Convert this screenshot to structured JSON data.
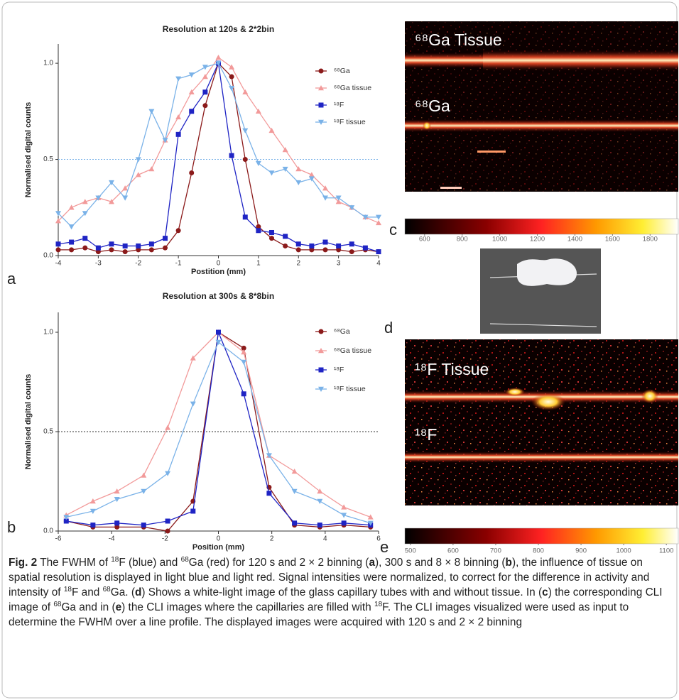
{
  "chart_data": [
    {
      "type": "line",
      "panel_label": "a",
      "title": "Resolution at 120s & 2*2bin",
      "xlabel": "Postition (mm)",
      "ylabel": "Normalised digital counts",
      "x": [
        -4,
        -3.67,
        -3.33,
        -3,
        -2.67,
        -2.33,
        -2,
        -1.67,
        -1.33,
        -1,
        -0.67,
        -0.33,
        0,
        0.33,
        0.67,
        1,
        1.33,
        1.67,
        2,
        2.33,
        2.67,
        3,
        3.33,
        3.67,
        4
      ],
      "xlim": [
        -4,
        4
      ],
      "xticks": [
        -4,
        -3,
        -2,
        -1,
        0,
        1,
        2,
        3,
        4
      ],
      "ylim": [
        0,
        1.1
      ],
      "yticks": [
        {
          "value": 0,
          "label": "0.0"
        },
        {
          "value": 0.5,
          "label": "0.5"
        },
        {
          "value": 1,
          "label": "1.0"
        }
      ],
      "reference_line": {
        "value": 0.5,
        "color": "#7ab2e8"
      },
      "legend": "upper right",
      "series": [
        {
          "name": "⁶⁸Ga",
          "color": "#8b1a1a",
          "marker": "circle",
          "values": [
            0.03,
            0.03,
            0.04,
            0.02,
            0.03,
            0.02,
            0.03,
            0.03,
            0.04,
            0.13,
            0.43,
            0.78,
            1.0,
            0.93,
            0.5,
            0.15,
            0.09,
            0.05,
            0.03,
            0.03,
            0.03,
            0.03,
            0.02,
            0.03,
            0.02
          ]
        },
        {
          "name": "⁶⁸Ga tissue",
          "color": "#f29a9a",
          "marker": "triangle-up",
          "values": [
            0.18,
            0.25,
            0.28,
            0.3,
            0.28,
            0.35,
            0.42,
            0.45,
            0.6,
            0.72,
            0.85,
            0.93,
            1.03,
            0.98,
            0.85,
            0.75,
            0.65,
            0.55,
            0.45,
            0.42,
            0.35,
            0.28,
            0.25,
            0.2,
            0.17
          ]
        },
        {
          "name": "¹⁸F",
          "color": "#1f24c4",
          "marker": "square",
          "values": [
            0.06,
            0.07,
            0.09,
            0.04,
            0.06,
            0.05,
            0.05,
            0.06,
            0.09,
            0.63,
            0.75,
            0.85,
            1.0,
            0.52,
            0.2,
            0.13,
            0.12,
            0.1,
            0.06,
            0.05,
            0.07,
            0.05,
            0.06,
            0.04,
            0.02
          ]
        },
        {
          "name": "¹⁸F tissue",
          "color": "#7ab2e8",
          "marker": "triangle-down",
          "values": [
            0.22,
            0.15,
            0.22,
            0.3,
            0.38,
            0.3,
            0.5,
            0.75,
            0.6,
            0.92,
            0.94,
            0.98,
            1.0,
            0.87,
            0.65,
            0.48,
            0.43,
            0.45,
            0.38,
            0.4,
            0.3,
            0.3,
            0.25,
            0.2,
            0.2
          ]
        }
      ]
    },
    {
      "type": "line",
      "panel_label": "b",
      "title": "Resolution at 300s & 8*8bin",
      "xlabel": "Position (mm)",
      "ylabel": "Normalised digital counts",
      "x": [
        -5.7,
        -4.7,
        -3.8,
        -2.8,
        -1.9,
        -0.95,
        0,
        0.95,
        1.9,
        2.85,
        3.8,
        4.7,
        5.7
      ],
      "xlim": [
        -6,
        6
      ],
      "xticks": [
        -6,
        -4,
        -2,
        0,
        2,
        4,
        6
      ],
      "ylim": [
        0,
        1.1
      ],
      "yticks": [
        {
          "value": 0,
          "label": "0.0"
        },
        {
          "value": 0.5,
          "label": "0.5"
        },
        {
          "value": 1,
          "label": "1.0"
        }
      ],
      "reference_line": {
        "value": 0.5,
        "color": "#333333"
      },
      "legend": "upper right",
      "series": [
        {
          "name": "⁶⁸Ga",
          "color": "#8b1a1a",
          "marker": "circle",
          "values": [
            0.05,
            0.02,
            0.02,
            0.02,
            0.0,
            0.15,
            1.0,
            0.92,
            0.22,
            0.03,
            0.02,
            0.03,
            0.02
          ]
        },
        {
          "name": "⁶⁸Ga tissue",
          "color": "#f29a9a",
          "marker": "triangle-up",
          "values": [
            0.08,
            0.15,
            0.2,
            0.28,
            0.52,
            0.87,
            1.0,
            0.9,
            0.38,
            0.3,
            0.2,
            0.12,
            0.07
          ]
        },
        {
          "name": "¹⁸F",
          "color": "#1f24c4",
          "marker": "square",
          "values": [
            0.05,
            0.03,
            0.04,
            0.03,
            0.05,
            0.1,
            1.0,
            0.69,
            0.19,
            0.04,
            0.03,
            0.04,
            0.03
          ]
        },
        {
          "name": "¹⁸F tissue",
          "color": "#7ab2e8",
          "marker": "triangle-down",
          "values": [
            0.07,
            0.1,
            0.16,
            0.2,
            0.29,
            0.64,
            0.95,
            0.85,
            0.38,
            0.2,
            0.15,
            0.08,
            0.04
          ]
        }
      ]
    }
  ],
  "images": [
    {
      "panel_label": "c",
      "labels": [
        "⁶⁸Ga Tissue",
        "⁶⁸Ga"
      ],
      "colorbar": {
        "lim": [
          495,
          1950
        ],
        "ticks": [
          600,
          800,
          1000,
          1200,
          1400,
          1600,
          1800
        ]
      }
    },
    {
      "panel_label": "d"
    },
    {
      "panel_label": "e",
      "labels": [
        "¹⁸F Tissue",
        "¹⁸F"
      ],
      "colorbar": {
        "lim": [
          487,
          1128
        ],
        "ticks": [
          500,
          600,
          700,
          800,
          900,
          1000,
          1100
        ]
      }
    }
  ],
  "caption": [
    {
      "text": "Fig. 2",
      "style": "bold"
    },
    " The FWHM of ",
    {
      "text": "18",
      "style": "sup"
    },
    "F (blue) and ",
    {
      "text": "68",
      "style": "sup"
    },
    "Ga (red) for 120 s and 2 × 2 binning (",
    {
      "text": "a",
      "style": "bold"
    },
    "), 300 s and 8 × 8 binning (",
    {
      "text": "b",
      "style": "bold"
    },
    "), the influence of tissue on spatial resolution is displayed in light blue and light red. Signal intensities were normalized, to correct for the difference in activity and intensity of ",
    {
      "text": "18",
      "style": "sup"
    },
    "F and ",
    {
      "text": "68",
      "style": "sup"
    },
    "Ga. (",
    {
      "text": "d",
      "style": "bold"
    },
    ") Shows a white-light image of the glass capillary tubes with and without tissue. In (",
    {
      "text": "c",
      "style": "bold"
    },
    ") the corresponding CLI image of ",
    {
      "text": "68",
      "style": "sup"
    },
    "Ga and in (",
    {
      "text": "e",
      "style": "bold"
    },
    ") the CLI images where the capillaries are filled with ",
    {
      "text": "18",
      "style": "sup"
    },
    "F. The CLI images visualized were used as input to determine the FWHM over a line profile. The displayed images were acquired with 120 s and 2 × 2 binning"
  ]
}
